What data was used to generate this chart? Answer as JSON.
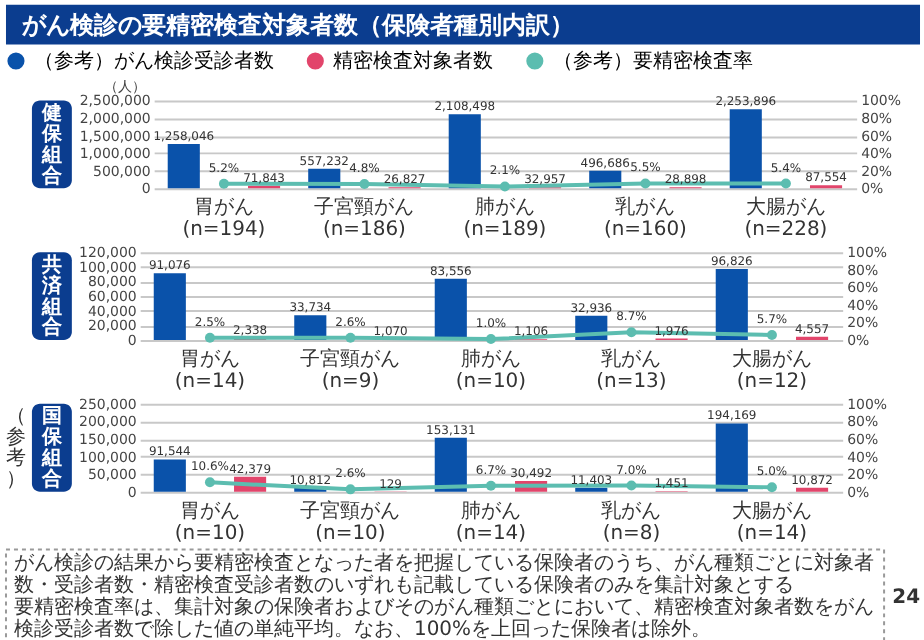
{
  "chart_data": [
    {
      "type": "bar",
      "title": "がん検診の要精密検査対象者数（保険者種別内訳）",
      "ylabel": "健保組合",
      "annotations": [
        "（人）"
      ],
      "categories": [
        "胃がん (n=194)",
        "子宮頸がん (n=186)",
        "肺がん (n=189)",
        "乳がん (n=160)",
        "大腸がん (n=228)"
      ],
      "series": [
        {
          "name": "（参考）がん検診受診者数",
          "color": "#0a52aa",
          "values": [
            1258046,
            557232,
            2108498,
            496686,
            2253896
          ],
          "value_labels": [
            "1,258,046",
            "557,232",
            "2,108,498",
            "496,686",
            "2,253,896"
          ]
        },
        {
          "name": "精密検査対象者数",
          "color": "#e2456b",
          "values": [
            71843,
            26827,
            32957,
            28898,
            87554
          ],
          "value_labels": [
            "71,843",
            "26,827",
            "32,957",
            "28,898",
            "87,554"
          ]
        },
        {
          "name": "（参考）要精密検査率",
          "color": "#5cbdb0",
          "type": "line",
          "axis": "y2",
          "marker": "circle",
          "values": [
            5.2,
            4.8,
            2.1,
            5.5,
            5.4
          ],
          "value_labels": [
            "5.2%",
            "4.8%",
            "2.1%",
            "5.5%",
            "5.4%"
          ]
        }
      ],
      "ylim": [
        0,
        2500000
      ],
      "yticks": [
        {
          "value": 0,
          "label": "0"
        },
        {
          "value": 500000,
          "label": "500,000"
        },
        {
          "value": 1000000,
          "label": "1,000,000"
        },
        {
          "value": 1500000,
          "label": "1,500,000"
        },
        {
          "value": 2000000,
          "label": "2,000,000"
        },
        {
          "value": 2500000,
          "label": "2,500,000"
        }
      ],
      "y2lim": [
        0,
        100
      ],
      "y2ticks": [
        {
          "value": 0,
          "label": "0%"
        },
        {
          "value": 20,
          "label": "20%"
        },
        {
          "value": 40,
          "label": "40%"
        },
        {
          "value": 60,
          "label": "60%"
        },
        {
          "value": 80,
          "label": "80%"
        },
        {
          "value": 100,
          "label": "100%"
        }
      ],
      "grid": "y",
      "legend": "top"
    },
    {
      "type": "bar",
      "ylabel": "共済組合",
      "categories": [
        "胃がん (n=14)",
        "子宮頸がん (n=9)",
        "肺がん (n=10)",
        "乳がん (n=13)",
        "大腸がん (n=12)"
      ],
      "series": [
        {
          "name": "（参考）がん検診受診者数",
          "color": "#0a52aa",
          "values": [
            91076,
            33734,
            83556,
            32936,
            96826
          ],
          "value_labels": [
            "91,076",
            "33,734",
            "83,556",
            "32,936",
            "96,826"
          ]
        },
        {
          "name": "精密検査対象者数",
          "color": "#e2456b",
          "values": [
            2338,
            1070,
            1106,
            1976,
            4557
          ],
          "value_labels": [
            "2,338",
            "1,070",
            "1,106",
            "1,976",
            "4,557"
          ]
        },
        {
          "name": "（参考）要精密検査率",
          "color": "#5cbdb0",
          "type": "line",
          "axis": "y2",
          "marker": "circle",
          "values": [
            2.5,
            2.6,
            1.0,
            8.7,
            5.7
          ],
          "value_labels": [
            "2.5%",
            "2.6%",
            "1.0%",
            "8.7%",
            "5.7%"
          ]
        }
      ],
      "ylim": [
        0,
        120000
      ],
      "yticks": [
        {
          "value": 0,
          "label": "0"
        },
        {
          "value": 20000,
          "label": "20,000"
        },
        {
          "value": 40000,
          "label": "40,000"
        },
        {
          "value": 60000,
          "label": "60,000"
        },
        {
          "value": 80000,
          "label": "80,000"
        },
        {
          "value": 100000,
          "label": "100,000"
        },
        {
          "value": 120000,
          "label": "120,000"
        }
      ],
      "y2lim": [
        0,
        100
      ],
      "y2ticks": [
        {
          "value": 0,
          "label": "0%"
        },
        {
          "value": 20,
          "label": "20%"
        },
        {
          "value": 40,
          "label": "40%"
        },
        {
          "value": 60,
          "label": "60%"
        },
        {
          "value": 80,
          "label": "80%"
        },
        {
          "value": 100,
          "label": "100%"
        }
      ],
      "grid": "y"
    },
    {
      "type": "bar",
      "ylabel": "国保組合",
      "subtitle": "（参考）",
      "categories": [
        "胃がん (n=10)",
        "子宮頸がん (n=10)",
        "肺がん (n=14)",
        "乳がん (n=8)",
        "大腸がん (n=14)"
      ],
      "series": [
        {
          "name": "（参考）がん検診受診者数",
          "color": "#0a52aa",
          "values": [
            91544,
            10812,
            153131,
            11403,
            194169
          ],
          "value_labels": [
            "91,544",
            "10,812",
            "153,131",
            "11,403",
            "194,169"
          ]
        },
        {
          "name": "精密検査対象者数",
          "color": "#e2456b",
          "values": [
            42379,
            129,
            30492,
            1451,
            10872
          ],
          "value_labels": [
            "42,379",
            "129",
            "30,492",
            "1,451",
            "10,872"
          ]
        },
        {
          "name": "（参考）要精密検査率",
          "color": "#5cbdb0",
          "type": "line",
          "axis": "y2",
          "marker": "circle",
          "values": [
            10.6,
            2.6,
            6.7,
            7.0,
            5.0
          ],
          "value_labels": [
            "10.6%",
            "2.6%",
            "6.7%",
            "7.0%",
            "5.0%"
          ]
        }
      ],
      "ylim": [
        0,
        250000
      ],
      "yticks": [
        {
          "value": 0,
          "label": "0"
        },
        {
          "value": 50000,
          "label": "50,000"
        },
        {
          "value": 100000,
          "label": "100,000"
        },
        {
          "value": 150000,
          "label": "150,000"
        },
        {
          "value": 200000,
          "label": "200,000"
        },
        {
          "value": 250000,
          "label": "250,000"
        }
      ],
      "y2lim": [
        0,
        100
      ],
      "y2ticks": [
        {
          "value": 0,
          "label": "0%"
        },
        {
          "value": 20,
          "label": "20%"
        },
        {
          "value": 40,
          "label": "40%"
        },
        {
          "value": 60,
          "label": "60%"
        },
        {
          "value": 80,
          "label": "80%"
        },
        {
          "value": 100,
          "label": "100%"
        }
      ],
      "grid": "y",
      "annotations": [
        "がん検診の結果から要精密検査となった者を把握している保険者のうち、がん種類ごとに対象者数・受診者数・精密検査受診者数のいずれも記載している保険者のみを集計対象とする",
        "要精密検査率は、集計対象の保険者およびそのがん種類ごとにおいて、精密検査対象者数をがん検診受診者数で除した値の単純平均。なお、100%を上回った保険者は除外。",
        "24"
      ]
    }
  ]
}
